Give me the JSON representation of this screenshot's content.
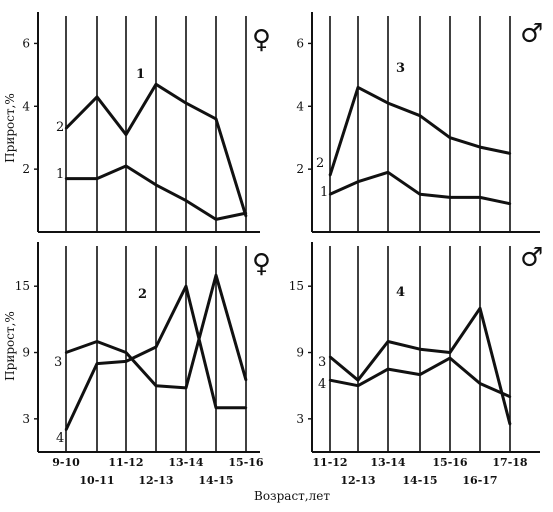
{
  "xlabel": "Возраст,лет",
  "ylabel": "Прирост,%",
  "chart_data": [
    {
      "type": "line",
      "panel_label": "1",
      "sex_symbol": "♀",
      "categories": [
        "9-10",
        "10-11",
        "11-12",
        "12-13",
        "13-14",
        "14-15",
        "15-16"
      ],
      "ylim": [
        0,
        7
      ],
      "yticks": [
        2,
        4,
        6
      ],
      "series": [
        {
          "name": "1",
          "values": [
            1.7,
            1.7,
            2.1,
            1.5,
            1.0,
            0.4,
            0.6
          ]
        },
        {
          "name": "2",
          "values": [
            3.3,
            4.3,
            3.1,
            4.7,
            4.1,
            3.6,
            0.5
          ]
        }
      ]
    },
    {
      "type": "line",
      "panel_label": "3",
      "sex_symbol": "♂",
      "categories": [
        "11-12",
        "12-13",
        "13-14",
        "14-15",
        "15-16",
        "16-17",
        "17-18"
      ],
      "ylim": [
        0,
        7
      ],
      "yticks": [
        2,
        4,
        6
      ],
      "series": [
        {
          "name": "1",
          "values": [
            1.2,
            1.6,
            1.9,
            1.2,
            1.1,
            1.1,
            0.9
          ]
        },
        {
          "name": "2",
          "values": [
            1.8,
            4.6,
            4.1,
            3.7,
            3.0,
            2.7,
            2.5
          ]
        }
      ]
    },
    {
      "type": "line",
      "panel_label": "2",
      "sex_symbol": "♀",
      "categories": [
        "9-10",
        "10-11",
        "11-12",
        "12-13",
        "13-14",
        "14-15",
        "15-16"
      ],
      "ylim": [
        0,
        19
      ],
      "yticks": [
        3,
        9,
        15
      ],
      "series": [
        {
          "name": "3",
          "values": [
            9.0,
            10.0,
            9.0,
            6.0,
            5.8,
            16.0,
            6.5
          ]
        },
        {
          "name": "4",
          "values": [
            2.0,
            8.0,
            8.2,
            9.5,
            15.0,
            4.0,
            4.0
          ]
        }
      ]
    },
    {
      "type": "line",
      "panel_label": "4",
      "sex_symbol": "♂",
      "categories": [
        "11-12",
        "12-13",
        "13-14",
        "14-15",
        "15-16",
        "16-17",
        "17-18"
      ],
      "ylim": [
        0,
        19
      ],
      "yticks": [
        3,
        9,
        15
      ],
      "series": [
        {
          "name": "3",
          "values": [
            8.6,
            6.5,
            10.0,
            9.3,
            9.0,
            13.0,
            2.5
          ]
        },
        {
          "name": "4",
          "values": [
            6.5,
            6.0,
            7.5,
            7.0,
            8.5,
            6.2,
            5.0
          ]
        }
      ]
    }
  ]
}
